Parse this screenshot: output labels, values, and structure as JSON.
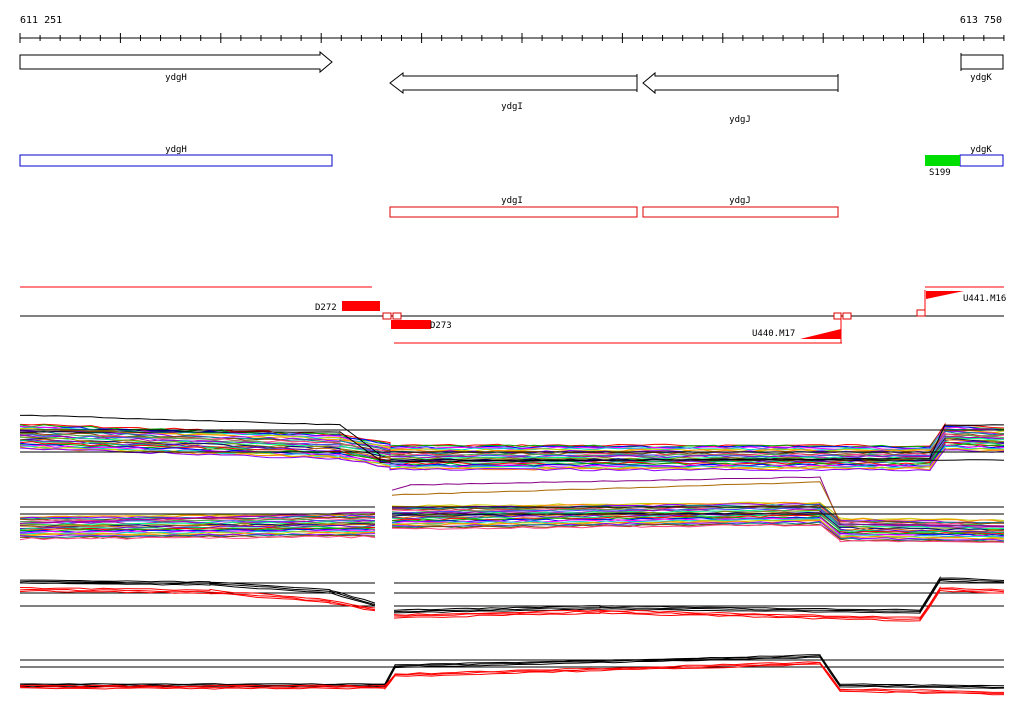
{
  "coordinates": {
    "start": "611 251",
    "end": "613 750"
  },
  "genes_strand": [
    {
      "label": "ydgH",
      "direction": "forward"
    },
    {
      "label": "ydgI",
      "direction": "reverse"
    },
    {
      "label": "ydgJ",
      "direction": "reverse"
    },
    {
      "label": "ydgK",
      "direction": "forward"
    }
  ],
  "genes_blue": [
    {
      "label": "ydgH"
    },
    {
      "label": "ydgK"
    }
  ],
  "genes_red": [
    {
      "label": "ydgI"
    },
    {
      "label": "ydgJ"
    }
  ],
  "promoter_feature": {
    "label": "S199",
    "color": "#00dd00"
  },
  "features": [
    {
      "label": "D272"
    },
    {
      "label": "D273"
    },
    {
      "label": "U440.M17"
    },
    {
      "label": "U441.M16"
    }
  ],
  "colors": {
    "forward_strand_box": "#ffffff",
    "blue_gene": "#0000cc",
    "red_gene": "#dd0000",
    "feature_red": "#ff0000",
    "promoter_green": "#00dd00",
    "axis": "#000000"
  },
  "panels": [
    {
      "name": "expression-panel-1",
      "type": "multicolor"
    },
    {
      "name": "expression-panel-2",
      "type": "multicolor"
    },
    {
      "name": "expression-panel-3",
      "type": "black-red"
    },
    {
      "name": "expression-panel-4",
      "type": "black-red"
    }
  ]
}
